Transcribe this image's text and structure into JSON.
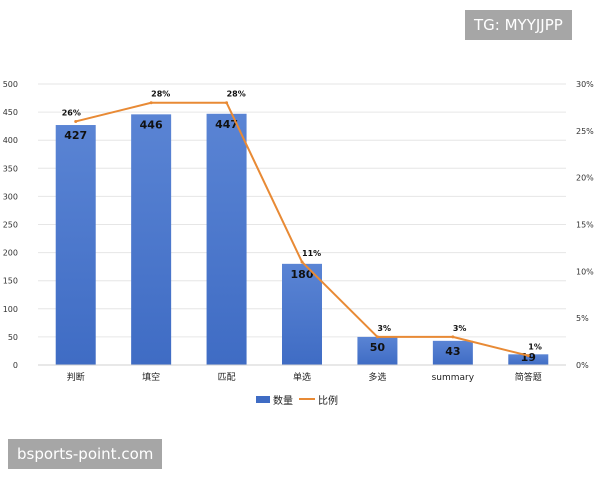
{
  "chart_data": {
    "type": "bar",
    "categories": [
      "判断",
      "填空",
      "匹配",
      "单选",
      "多选",
      "summary",
      "简答题"
    ],
    "series": [
      {
        "name": "数量",
        "type": "bar",
        "values": [
          427,
          446,
          447,
          180,
          50,
          43,
          19
        ],
        "color": "#3f6cc4",
        "labels": [
          "427",
          "446",
          "447",
          "180",
          "50",
          "43",
          "19"
        ]
      },
      {
        "name": "比例",
        "type": "line",
        "values": [
          26,
          28,
          28,
          11,
          3,
          3,
          1
        ],
        "color": "#e88a35",
        "labels": [
          "26%",
          "28%",
          "28%",
          "11%",
          "3%",
          "3%",
          "1%"
        ]
      }
    ],
    "y_left": {
      "min": 0,
      "max": 500,
      "step": 50,
      "ticks": [
        "0",
        "50",
        "100",
        "150",
        "200",
        "250",
        "300",
        "350",
        "400",
        "450",
        "500"
      ]
    },
    "y_right": {
      "min": 0,
      "max": 30,
      "step": 5,
      "ticks": [
        "0%",
        "5%",
        "10%",
        "15%",
        "20%",
        "25%",
        "30%"
      ]
    },
    "grid": true,
    "legend_position": "bottom"
  },
  "watermarks": {
    "top_right": "TG: MYYJJPP",
    "bottom_left": "bsports-point.com"
  },
  "legend": {
    "bar_label": "数量",
    "line_label": "比例"
  }
}
